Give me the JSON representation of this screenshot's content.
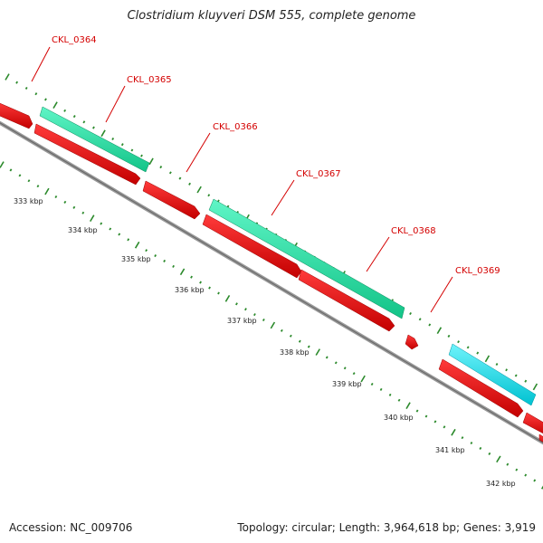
{
  "title": "Clostridium kluyveri DSM 555, complete genome",
  "accession": "Accession: NC_009706",
  "summary": "Topology: circular; Length: 3,964,618 bp; Genes: 3,919",
  "colors": {
    "cds": "#ff0000",
    "rna_green": "#1de9a3",
    "rna_cyan": "#00e5ee",
    "backbone": "#888888",
    "ticks": "#2c8a2c",
    "label": "#d40000"
  },
  "gene_labels": [
    "CKL_0364",
    "CKL_0365",
    "CKL_0366",
    "CKL_0367",
    "CKL_0368",
    "CKL_0369"
  ],
  "kbp_labels": [
    "333 kbp",
    "334 kbp",
    "335 kbp",
    "336 kbp",
    "337 kbp",
    "338 kbp",
    "339 kbp",
    "340 kbp",
    "341 kbp",
    "342 kbp"
  ]
}
